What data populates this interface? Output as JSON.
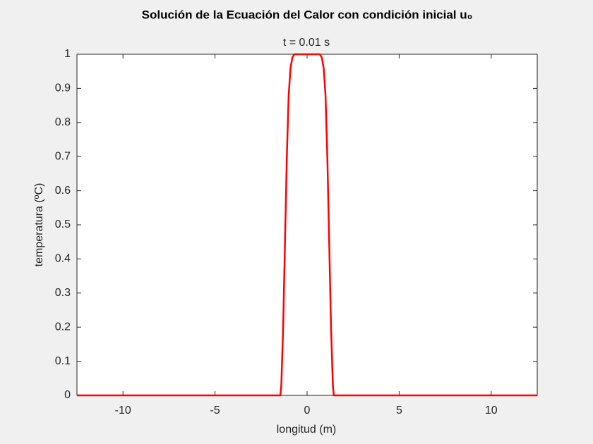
{
  "chart_data": {
    "type": "line",
    "title": "Solución de la Ecuación del Calor con condición inicial u₀",
    "subtitle": "t = 0.01 s",
    "xlabel": "longitud (m)",
    "ylabel": "temperatura (ºC)",
    "x": [
      -12.5,
      -1.5,
      -1.45,
      -1.4,
      -1.3,
      -1.2,
      -1.1,
      -1.0,
      -0.9,
      -0.8,
      -0.7,
      -0.5,
      0,
      0.5,
      0.7,
      0.8,
      0.9,
      1.0,
      1.1,
      1.2,
      1.3,
      1.4,
      1.45,
      1.5,
      12.5
    ],
    "series": [
      {
        "color": "#ff0000",
        "values": [
          0,
          0,
          0,
          0.03,
          0.2,
          0.45,
          0.7,
          0.88,
          0.96,
          0.99,
          1,
          1,
          1,
          1,
          1,
          0.99,
          0.96,
          0.88,
          0.7,
          0.45,
          0.2,
          0.03,
          0,
          0,
          0
        ]
      }
    ],
    "xlim": [
      -12.5,
      12.5
    ],
    "xticks": [
      -10,
      -5,
      0,
      5,
      10
    ],
    "ylim": [
      0,
      1
    ],
    "yticks": [
      0,
      0.1,
      0.2,
      0.3,
      0.4,
      0.5,
      0.6,
      0.7,
      0.8,
      0.9,
      1
    ],
    "grid": false
  }
}
